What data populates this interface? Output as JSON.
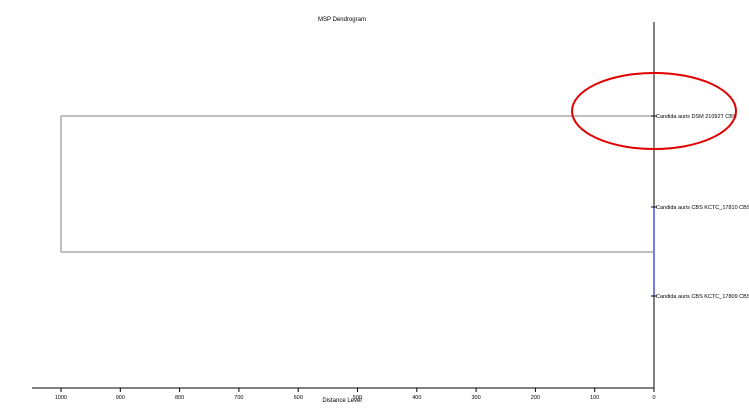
{
  "chart_data": {
    "type": "dendrogram",
    "title": "MSP Dendrogram",
    "xlabel": "Distance Level",
    "ylabel": "",
    "xlim": [
      1000,
      0
    ],
    "x_reversed": true,
    "xticks": [
      1000,
      900,
      800,
      700,
      600,
      500,
      400,
      300,
      200,
      100,
      0
    ],
    "leaves": [
      "Candida auris DSM 21092T CBS",
      "Candida auris CBS KCTC_17810 CBS",
      "Candida auris CBS KCTC_17809 CBS"
    ],
    "merges": [
      {
        "left": 1,
        "right": 2,
        "distance": 0
      },
      {
        "left": 0,
        "right": "cluster(1,2)",
        "distance": 1000
      }
    ],
    "highlighted_leaf": "Candida auris DSM 21092T CBS",
    "colors": {
      "tree_line": "#7f7f7f",
      "close_link": "#1f1fd0",
      "highlight_ellipse": "#e00000",
      "axis": "#000000"
    }
  }
}
